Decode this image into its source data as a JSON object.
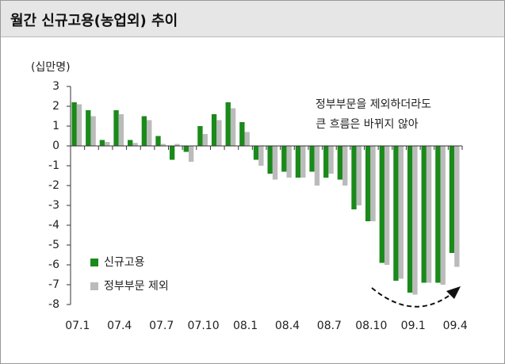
{
  "chart_data": {
    "type": "bar",
    "title": "월간 신규고용(농업외) 추이",
    "y_label": "(십만명)",
    "annotation": [
      "정부부문을 제외하더라도",
      "큰 흐름은 바뀌지 않아"
    ],
    "categories": [
      "07.1",
      null,
      null,
      "07.4",
      null,
      null,
      "07.7",
      null,
      null,
      "07.10",
      null,
      null,
      "08.1",
      null,
      null,
      "08.4",
      null,
      null,
      "08.7",
      null,
      null,
      "08.10",
      null,
      null,
      "09.1",
      null,
      null,
      "09.4"
    ],
    "series": [
      {
        "name": "신규고용",
        "color": "#1a8a1a",
        "values": [
          2.2,
          1.8,
          0.3,
          1.8,
          0.3,
          1.5,
          0.5,
          -0.7,
          -0.3,
          1.0,
          1.6,
          2.2,
          1.2,
          -0.7,
          -1.4,
          -1.3,
          -1.6,
          -1.3,
          -1.6,
          -1.7,
          -3.2,
          -3.8,
          -5.9,
          -6.8,
          -7.4,
          -6.9,
          -6.9,
          -5.4
        ]
      },
      {
        "name": "정부부문 제외",
        "color": "#bbbbbb",
        "values": [
          2.1,
          1.5,
          0.2,
          1.6,
          0.15,
          1.3,
          0.1,
          0.1,
          -0.8,
          0.6,
          1.3,
          1.9,
          0.7,
          -1.0,
          -1.7,
          -1.6,
          -1.6,
          -2.0,
          -1.4,
          -2.0,
          -3.0,
          -3.8,
          -6.0,
          -6.7,
          -7.5,
          -6.9,
          -7.0,
          -6.1
        ]
      }
    ],
    "ylim": [
      -8,
      3
    ],
    "yticks": [
      3,
      2,
      1,
      0,
      -1,
      -2,
      -3,
      -4,
      -5,
      -6,
      -7,
      -8
    ],
    "legend": "lower-left"
  }
}
